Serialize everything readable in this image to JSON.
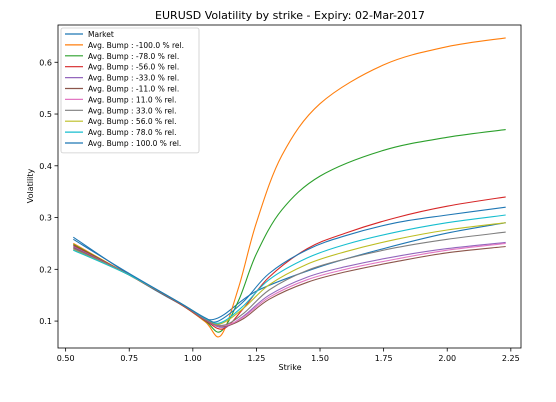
{
  "chart_data": {
    "type": "line",
    "title": "EURUSD  Volatility by strike - Expiry: 02-Mar-2017",
    "xlabel": "Strike",
    "ylabel": "Volatility",
    "xlim": [
      0.47,
      2.29
    ],
    "ylim": [
      0.048,
      0.672
    ],
    "xticks": [
      0.5,
      0.75,
      1.0,
      1.25,
      1.5,
      1.75,
      2.0,
      2.25
    ],
    "xtick_labels": [
      "0.50",
      "0.75",
      "1.00",
      "1.25",
      "1.50",
      "1.75",
      "2.00",
      "2.25"
    ],
    "yticks": [
      0.1,
      0.2,
      0.3,
      0.4,
      0.5,
      0.6
    ],
    "ytick_labels": [
      "0.1",
      "0.2",
      "0.3",
      "0.4",
      "0.5",
      "0.6"
    ],
    "legend_position": "top-left",
    "series": [
      {
        "name": "Market",
        "color": "#1f77b4",
        "x": [
          0.53,
          0.75,
          0.95,
          1.08,
          1.25,
          1.5,
          1.75,
          2.0,
          2.23
        ],
        "y": [
          0.262,
          0.19,
          0.133,
          0.103,
          0.158,
          0.205,
          0.24,
          0.27,
          0.29
        ]
      },
      {
        "name": "Avg. Bump : -100.0 % rel.",
        "color": "#ff7f0e",
        "x": [
          0.53,
          0.75,
          0.95,
          1.05,
          1.11,
          1.18,
          1.25,
          1.35,
          1.5,
          1.75,
          2.0,
          2.23
        ],
        "y": [
          0.25,
          0.189,
          0.133,
          0.098,
          0.072,
          0.165,
          0.29,
          0.42,
          0.52,
          0.595,
          0.63,
          0.647
        ]
      },
      {
        "name": "Avg. Bump : -78.0 % rel.",
        "color": "#2ca02c",
        "x": [
          0.53,
          0.75,
          0.95,
          1.05,
          1.11,
          1.18,
          1.25,
          1.35,
          1.5,
          1.75,
          2.0,
          2.23
        ],
        "y": [
          0.248,
          0.189,
          0.133,
          0.1,
          0.08,
          0.14,
          0.23,
          0.315,
          0.38,
          0.43,
          0.455,
          0.47
        ]
      },
      {
        "name": "Avg. Bump : -56.0 % rel.",
        "color": "#d62728",
        "x": [
          0.53,
          0.75,
          0.95,
          1.05,
          1.12,
          1.2,
          1.3,
          1.45,
          1.6,
          1.8,
          2.0,
          2.23
        ],
        "y": [
          0.246,
          0.189,
          0.133,
          0.101,
          0.085,
          0.125,
          0.185,
          0.24,
          0.27,
          0.3,
          0.322,
          0.34
        ]
      },
      {
        "name": "Avg. Bump : -33.0 % rel.",
        "color": "#9467bd",
        "x": [
          0.53,
          0.75,
          0.95,
          1.05,
          1.12,
          1.2,
          1.3,
          1.45,
          1.6,
          1.8,
          2.0,
          2.23
        ],
        "y": [
          0.244,
          0.189,
          0.134,
          0.102,
          0.088,
          0.11,
          0.15,
          0.185,
          0.205,
          0.225,
          0.24,
          0.252
        ]
      },
      {
        "name": "Avg. Bump : -11.0 % rel.",
        "color": "#8c564b",
        "x": [
          0.53,
          0.75,
          0.95,
          1.05,
          1.12,
          1.2,
          1.3,
          1.45,
          1.6,
          1.8,
          2.0,
          2.23
        ],
        "y": [
          0.242,
          0.189,
          0.134,
          0.103,
          0.09,
          0.105,
          0.142,
          0.175,
          0.195,
          0.215,
          0.232,
          0.244
        ]
      },
      {
        "name": "Avg. Bump : 11.0 % rel.",
        "color": "#e377c2",
        "x": [
          0.53,
          0.75,
          0.95,
          1.05,
          1.12,
          1.2,
          1.3,
          1.45,
          1.6,
          1.8,
          2.0,
          2.23
        ],
        "y": [
          0.24,
          0.189,
          0.135,
          0.104,
          0.091,
          0.108,
          0.146,
          0.18,
          0.2,
          0.22,
          0.237,
          0.25
        ]
      },
      {
        "name": "Avg. Bump : 33.0 % rel.",
        "color": "#7f7f7f",
        "x": [
          0.53,
          0.75,
          0.95,
          1.05,
          1.12,
          1.2,
          1.3,
          1.45,
          1.6,
          1.8,
          2.0,
          2.23
        ],
        "y": [
          0.24,
          0.189,
          0.135,
          0.104,
          0.092,
          0.115,
          0.16,
          0.198,
          0.22,
          0.242,
          0.258,
          0.272
        ]
      },
      {
        "name": "Avg. Bump : 56.0 % rel.",
        "color": "#bcbd22",
        "x": [
          0.53,
          0.75,
          0.95,
          1.05,
          1.11,
          1.2,
          1.3,
          1.45,
          1.6,
          1.8,
          2.0,
          2.23
        ],
        "y": [
          0.238,
          0.189,
          0.135,
          0.105,
          0.095,
          0.125,
          0.17,
          0.21,
          0.234,
          0.258,
          0.276,
          0.29
        ]
      },
      {
        "name": "Avg. Bump : 78.0 % rel.",
        "color": "#17becf",
        "x": [
          0.53,
          0.75,
          0.95,
          1.05,
          1.11,
          1.2,
          1.3,
          1.45,
          1.6,
          1.8,
          2.0,
          2.23
        ],
        "y": [
          0.237,
          0.189,
          0.135,
          0.105,
          0.097,
          0.13,
          0.18,
          0.222,
          0.248,
          0.272,
          0.29,
          0.305
        ]
      },
      {
        "name": "Avg. Bump : 100.0 % rel.",
        "color": "#1f77b4",
        "x": [
          0.53,
          0.75,
          0.95,
          1.05,
          1.1,
          1.2,
          1.3,
          1.45,
          1.6,
          1.8,
          2.0,
          2.23
        ],
        "y": [
          0.258,
          0.192,
          0.135,
          0.106,
          0.1,
          0.138,
          0.192,
          0.238,
          0.265,
          0.29,
          0.305,
          0.32
        ]
      }
    ]
  }
}
